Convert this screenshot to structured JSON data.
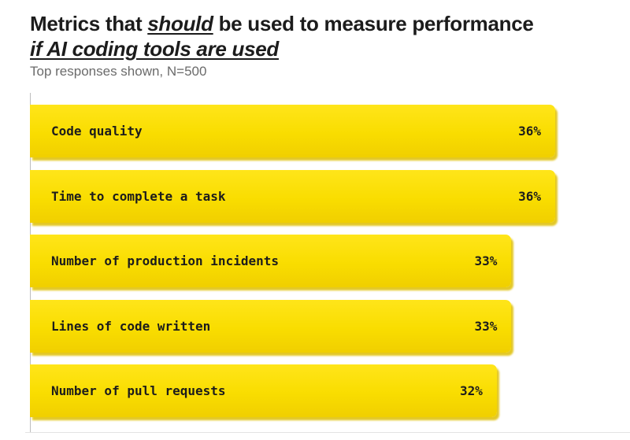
{
  "header": {
    "title_part1": "Metrics that ",
    "title_em": "should",
    "title_part2": " be used to measure performance",
    "title_line2": "if AI coding tools are used",
    "subtitle": "Top responses shown, N=500"
  },
  "chart_data": {
    "type": "bar",
    "orientation": "horizontal",
    "title": "Metrics that should be used to measure performance if AI coding tools are used",
    "subtitle": "Top responses shown, N=500",
    "categories": [
      "Code quality",
      "Time to complete a task",
      "Number of production incidents",
      "Lines of code written",
      "Number of pull requests"
    ],
    "values": [
      36,
      36,
      33,
      33,
      32
    ],
    "value_labels": [
      "36%",
      "36%",
      "33%",
      "33%",
      "32%"
    ],
    "unit": "%",
    "xlabel": "",
    "ylabel": "",
    "grid": false,
    "legend": "none",
    "bar_color": "#f9dd00"
  }
}
